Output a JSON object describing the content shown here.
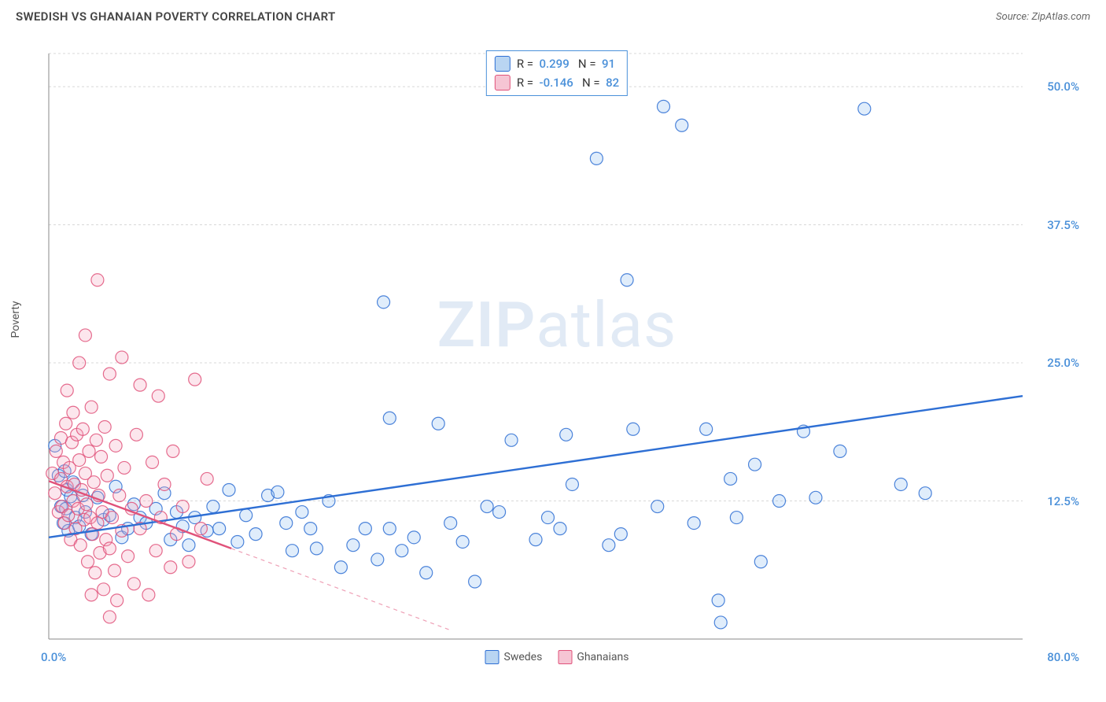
{
  "title": "SWEDISH VS GHANAIAN POVERTY CORRELATION CHART",
  "source_label": "Source: ",
  "source_value": "ZipAtlas.com",
  "y_axis_label": "Poverty",
  "watermark_bold": "ZIP",
  "watermark_light": "atlas",
  "chart": {
    "type": "scatter",
    "xlim": [
      0,
      80
    ],
    "ylim": [
      0,
      53
    ],
    "x_ticks": [
      {
        "value": 0,
        "label": "0.0%",
        "color": "#4a90d9"
      },
      {
        "value": 80,
        "label": "80.0%",
        "color": "#4a90d9"
      }
    ],
    "y_ticks": [
      {
        "value": 12.5,
        "label": "12.5%",
        "color": "#4a90d9"
      },
      {
        "value": 25.0,
        "label": "25.0%",
        "color": "#4a90d9"
      },
      {
        "value": 37.5,
        "label": "37.5%",
        "color": "#4a90d9"
      },
      {
        "value": 50.0,
        "label": "50.0%",
        "color": "#4a90d9"
      }
    ],
    "grid_color": "#d8d8d8",
    "axis_color": "#888888",
    "background": "#ffffff",
    "marker_radius": 8,
    "marker_stroke_width": 1.2,
    "marker_fill_opacity": 0.28,
    "line_width": 2.4,
    "series": [
      {
        "name": "Swedes",
        "stroke": "#2e6fd4",
        "fill": "#8fbef0",
        "swatch_fill": "#b9d5f2",
        "swatch_stroke": "#2e6fd4",
        "R": "0.299",
        "N": "91",
        "trend": {
          "x1": 0,
          "y1": 9.2,
          "x2": 80,
          "y2": 22.0,
          "dashed_ext": false
        },
        "points": [
          [
            0.5,
            17.5
          ],
          [
            0.8,
            14.8
          ],
          [
            1.0,
            12.0
          ],
          [
            1.2,
            10.5
          ],
          [
            1.3,
            15.2
          ],
          [
            1.4,
            11.8
          ],
          [
            1.5,
            13.5
          ],
          [
            1.6,
            9.8
          ],
          [
            1.8,
            12.9
          ],
          [
            2.0,
            14.2
          ],
          [
            2.2,
            11.0
          ],
          [
            2.5,
            10.2
          ],
          [
            2.8,
            13.0
          ],
          [
            3.0,
            11.5
          ],
          [
            3.5,
            9.5
          ],
          [
            4.0,
            12.8
          ],
          [
            4.5,
            10.8
          ],
          [
            5.0,
            11.2
          ],
          [
            5.5,
            13.8
          ],
          [
            6.0,
            9.2
          ],
          [
            6.5,
            10.0
          ],
          [
            7.0,
            12.2
          ],
          [
            7.5,
            11.0
          ],
          [
            8.0,
            10.5
          ],
          [
            8.8,
            11.8
          ],
          [
            9.5,
            13.2
          ],
          [
            10.0,
            9.0
          ],
          [
            10.5,
            11.5
          ],
          [
            11.0,
            10.2
          ],
          [
            11.5,
            8.5
          ],
          [
            12.0,
            11.0
          ],
          [
            13.0,
            9.8
          ],
          [
            13.5,
            12.0
          ],
          [
            14.0,
            10.0
          ],
          [
            14.8,
            13.5
          ],
          [
            15.5,
            8.8
          ],
          [
            16.2,
            11.2
          ],
          [
            17.0,
            9.5
          ],
          [
            18.0,
            13.0
          ],
          [
            18.8,
            13.3
          ],
          [
            19.5,
            10.5
          ],
          [
            20.0,
            8.0
          ],
          [
            20.8,
            11.5
          ],
          [
            21.5,
            10.0
          ],
          [
            22.0,
            8.2
          ],
          [
            23.0,
            12.5
          ],
          [
            24.0,
            6.5
          ],
          [
            25.0,
            8.5
          ],
          [
            26.0,
            10.0
          ],
          [
            27.0,
            7.2
          ],
          [
            27.5,
            30.5
          ],
          [
            28.0,
            10.0
          ],
          [
            28.0,
            20.0
          ],
          [
            29.0,
            8.0
          ],
          [
            30.0,
            9.2
          ],
          [
            31.0,
            6.0
          ],
          [
            32.0,
            19.5
          ],
          [
            33.0,
            10.5
          ],
          [
            34.0,
            8.8
          ],
          [
            35.0,
            5.2
          ],
          [
            36.0,
            12.0
          ],
          [
            37.0,
            11.5
          ],
          [
            38.0,
            18.0
          ],
          [
            40.0,
            9.0
          ],
          [
            41.0,
            11.0
          ],
          [
            42.0,
            10.0
          ],
          [
            42.5,
            18.5
          ],
          [
            43.0,
            14.0
          ],
          [
            45.0,
            43.5
          ],
          [
            46.0,
            8.5
          ],
          [
            47.0,
            9.5
          ],
          [
            47.5,
            32.5
          ],
          [
            48.0,
            19.0
          ],
          [
            50.0,
            12.0
          ],
          [
            52.0,
            46.5
          ],
          [
            53.0,
            10.5
          ],
          [
            54.0,
            19.0
          ],
          [
            55.0,
            3.5
          ],
          [
            55.2,
            1.5
          ],
          [
            56.0,
            14.5
          ],
          [
            58.0,
            15.8
          ],
          [
            60.0,
            12.5
          ],
          [
            62.0,
            18.8
          ],
          [
            63.0,
            12.8
          ],
          [
            65.0,
            17.0
          ],
          [
            67.0,
            48.0
          ],
          [
            70.0,
            14.0
          ],
          [
            72.0,
            13.2
          ],
          [
            50.5,
            48.2
          ],
          [
            56.5,
            11.0
          ],
          [
            58.5,
            7.0
          ]
        ]
      },
      {
        "name": "Ghanaians",
        "stroke": "#e0527a",
        "fill": "#f4a6bd",
        "swatch_fill": "#f6c5d4",
        "swatch_stroke": "#e0527a",
        "R": "-0.146",
        "N": "82",
        "trend": {
          "x1": 0,
          "y1": 14.3,
          "x2": 15,
          "y2": 8.2,
          "dashed_ext": true,
          "ext_x2": 33,
          "ext_y2": 0.8
        },
        "points": [
          [
            0.3,
            15.0
          ],
          [
            0.5,
            13.2
          ],
          [
            0.6,
            17.0
          ],
          [
            0.8,
            11.5
          ],
          [
            1.0,
            14.5
          ],
          [
            1.0,
            18.2
          ],
          [
            1.1,
            12.0
          ],
          [
            1.2,
            16.0
          ],
          [
            1.3,
            10.5
          ],
          [
            1.4,
            19.5
          ],
          [
            1.5,
            13.8
          ],
          [
            1.5,
            22.5
          ],
          [
            1.6,
            11.2
          ],
          [
            1.7,
            15.5
          ],
          [
            1.8,
            9.0
          ],
          [
            1.9,
            17.8
          ],
          [
            2.0,
            12.5
          ],
          [
            2.0,
            20.5
          ],
          [
            2.1,
            14.0
          ],
          [
            2.2,
            10.0
          ],
          [
            2.3,
            18.5
          ],
          [
            2.4,
            11.8
          ],
          [
            2.5,
            16.2
          ],
          [
            2.5,
            25.0
          ],
          [
            2.6,
            8.5
          ],
          [
            2.7,
            13.5
          ],
          [
            2.8,
            19.0
          ],
          [
            2.9,
            10.8
          ],
          [
            3.0,
            15.0
          ],
          [
            3.0,
            27.5
          ],
          [
            3.1,
            12.2
          ],
          [
            3.2,
            7.0
          ],
          [
            3.3,
            17.0
          ],
          [
            3.4,
            11.0
          ],
          [
            3.5,
            21.0
          ],
          [
            3.6,
            9.5
          ],
          [
            3.7,
            14.2
          ],
          [
            3.8,
            6.0
          ],
          [
            3.9,
            18.0
          ],
          [
            4.0,
            10.5
          ],
          [
            4.0,
            32.5
          ],
          [
            4.1,
            13.0
          ],
          [
            4.2,
            7.8
          ],
          [
            4.3,
            16.5
          ],
          [
            4.4,
            11.5
          ],
          [
            4.5,
            4.5
          ],
          [
            4.6,
            19.2
          ],
          [
            4.7,
            9.0
          ],
          [
            4.8,
            14.8
          ],
          [
            5.0,
            8.2
          ],
          [
            5.0,
            24.0
          ],
          [
            5.2,
            11.0
          ],
          [
            5.4,
            6.2
          ],
          [
            5.5,
            17.5
          ],
          [
            5.6,
            3.5
          ],
          [
            5.8,
            13.0
          ],
          [
            6.0,
            9.8
          ],
          [
            6.0,
            25.5
          ],
          [
            6.2,
            15.5
          ],
          [
            6.5,
            7.5
          ],
          [
            6.8,
            11.8
          ],
          [
            7.0,
            5.0
          ],
          [
            7.2,
            18.5
          ],
          [
            7.5,
            10.0
          ],
          [
            7.5,
            23.0
          ],
          [
            8.0,
            12.5
          ],
          [
            8.2,
            4.0
          ],
          [
            8.5,
            16.0
          ],
          [
            8.8,
            8.0
          ],
          [
            9.0,
            22.0
          ],
          [
            9.2,
            11.0
          ],
          [
            9.5,
            14.0
          ],
          [
            10.0,
            6.5
          ],
          [
            10.2,
            17.0
          ],
          [
            10.5,
            9.5
          ],
          [
            11.0,
            12.0
          ],
          [
            11.5,
            7.0
          ],
          [
            12.0,
            23.5
          ],
          [
            12.5,
            10.0
          ],
          [
            13.0,
            14.5
          ],
          [
            5.0,
            2.0
          ],
          [
            3.5,
            4.0
          ]
        ]
      }
    ]
  },
  "legend_series": [
    {
      "label": "Swedes",
      "swatch_fill": "#b9d5f2",
      "swatch_stroke": "#2e6fd4"
    },
    {
      "label": "Ghanaians",
      "swatch_fill": "#f6c5d4",
      "swatch_stroke": "#e0527a"
    }
  ]
}
